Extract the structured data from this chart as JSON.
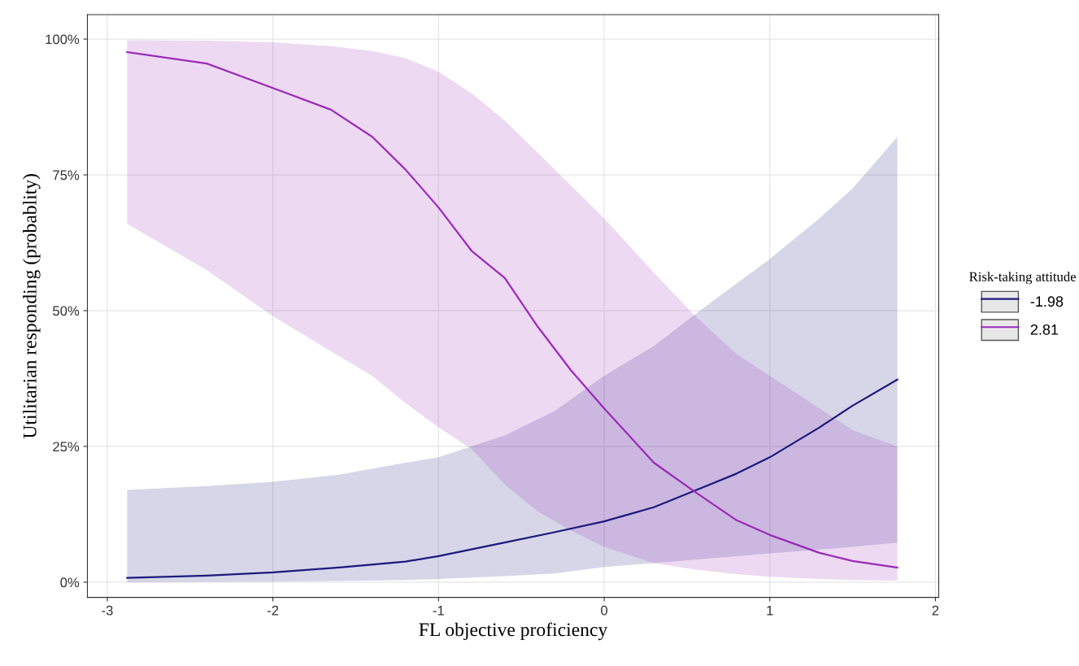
{
  "chart_data": {
    "type": "line",
    "xlabel": "FL objective proficiency",
    "ylabel": "Utilitarian responding (probablity)",
    "legend_title": "Risk-taking attitude",
    "legend": "right",
    "grid": true,
    "xlim": [
      -3.12,
      2.02
    ],
    "xticks": [
      -3,
      -2,
      -1,
      0,
      1,
      2
    ],
    "ylim": [
      -2.8,
      104.5
    ],
    "yticks": [
      {
        "value": 0,
        "label": "0%"
      },
      {
        "value": 25,
        "label": "25%"
      },
      {
        "value": 50,
        "label": "50%"
      },
      {
        "value": 75,
        "label": "75%"
      },
      {
        "value": 100,
        "label": "100%"
      }
    ],
    "series": [
      {
        "name": "-1.98",
        "color": "#1c1a7e",
        "x": [
          -2.88,
          -2.4,
          -2,
          -1.6,
          -1.2,
          -1,
          -0.6,
          -0.3,
          0,
          0.3,
          0.6,
          0.8,
          1,
          1.3,
          1.5,
          1.77
        ],
        "values": [
          0.8,
          1.2,
          1.8,
          2.7,
          3.8,
          4.8,
          7.3,
          9.2,
          11.2,
          13.8,
          17.5,
          20,
          23,
          28.5,
          32.5,
          37.3
        ],
        "lower": [
          0,
          0.05,
          0.1,
          0.2,
          0.4,
          0.6,
          1.1,
          1.6,
          2.8,
          3.5,
          4.3,
          4.8,
          5.3,
          6,
          6.5,
          7.3
        ],
        "upper": [
          17,
          17.7,
          18.5,
          19.8,
          22,
          23,
          27,
          31.5,
          38,
          43.5,
          50.5,
          55,
          59.5,
          67,
          72.5,
          82
        ]
      },
      {
        "name": "2.81",
        "color": "#9b2ab8",
        "x": [
          -2.88,
          -2.4,
          -2,
          -1.65,
          -1.4,
          -1.2,
          -1,
          -0.8,
          -0.6,
          -0.4,
          -0.2,
          0,
          0.3,
          0.55,
          0.8,
          1,
          1.3,
          1.5,
          1.77
        ],
        "values": [
          97.6,
          95.5,
          91,
          87,
          82,
          76,
          69,
          61,
          56,
          47,
          39,
          32,
          22,
          16.6,
          11.4,
          8.7,
          5.4,
          3.9,
          2.7
        ],
        "lower": [
          66,
          57.5,
          49,
          42.5,
          38,
          33,
          28.5,
          24.5,
          18,
          13,
          9.5,
          6.5,
          3.5,
          2.3,
          1.5,
          1,
          0.6,
          0.4,
          0.3
        ],
        "upper": [
          99.8,
          99.7,
          99.4,
          98.7,
          97.8,
          96.5,
          94,
          90,
          85,
          79,
          73,
          67,
          57,
          49,
          42,
          38,
          32,
          28,
          25
        ]
      }
    ]
  }
}
